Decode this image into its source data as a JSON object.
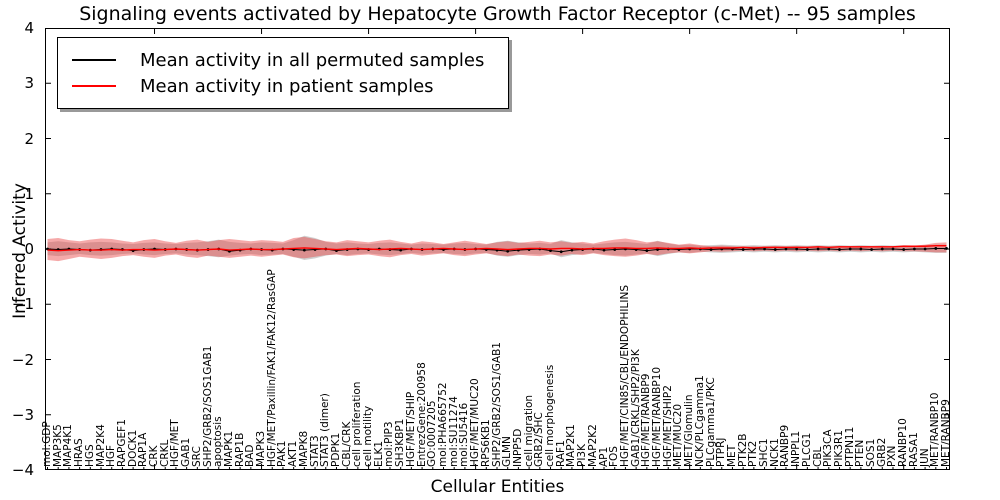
{
  "figure": {
    "title": "Signaling events activated by Hepatocyte Growth Factor Receptor (c-Met) -- 95 samples",
    "xlabel": "Cellular Entities",
    "ylabel": "Inferred Activity",
    "background": "#ffffff"
  },
  "legend": {
    "position": "upper left",
    "items": [
      {
        "label": "Mean activity in all permuted samples",
        "color": "#000000"
      },
      {
        "label": "Mean activity in patient samples",
        "color": "#ff0000"
      }
    ]
  },
  "axes": {
    "ylim": [
      -4,
      4
    ],
    "ytick_values": [
      4,
      3,
      2,
      1,
      0,
      -1,
      -2,
      -3,
      -4
    ],
    "ytick_labels": [
      "4",
      "3",
      "2",
      "1",
      "0",
      "−1",
      "−2",
      "−3",
      "−4"
    ],
    "xtick_major_every": 10,
    "grid": false
  },
  "chart_data": {
    "type": "line",
    "title": "Signaling events activated by Hepatocyte Growth Factor Receptor (c-Met) -- 95 samples",
    "xlabel": "Cellular Entities",
    "ylabel": "Inferred Activity",
    "ylim": [
      -4,
      4
    ],
    "legend_position": "upper left",
    "categories": [
      "mol:GDP",
      "MAP3K5",
      "MAP4K1",
      "HRAS",
      "HGS",
      "MAP2K4",
      "HGF",
      "RAPGEF1",
      "DOCK1",
      "RAP1A",
      "CRK",
      "CRKL",
      "HGF/MET",
      "GAB1",
      "SRC",
      "SHP2/GRB2/SOS1GAB1",
      "apoptosis",
      "MAPK1",
      "RAP1B",
      "BAD",
      "MAPK3",
      "HGF/MET/Paxillin/FAK1/FAK12/RasGAP",
      "PAK1",
      "AKT1",
      "MAPK8",
      "STAT3",
      "STAT3 (dimer)",
      "PDPK1",
      "CBL/CRK",
      "cell proliferation",
      "cell motility",
      "ELK1",
      "mol:PIP3",
      "SH3KBP1",
      "HGF/MET/SHIP",
      "EntrezGene:200958",
      "GO:0007205",
      "mol:PHA665752",
      "mol:SU11274",
      "mol:SU5416",
      "HGF/MET/MUC20",
      "RPS6KB1",
      "SHP2/GRB2/SOS1/GAB1",
      "GLMN",
      "INPP5D",
      "cell migration",
      "GRB2/SHC",
      "cell morphogenesis",
      "RAF1",
      "MAP2K1",
      "PI3K",
      "MAP2K2",
      "AP1",
      "FOS",
      "HGF/MET/CIN85/CBL/ENDOPHILINS",
      "GAB1/CRKL/SHP2/PI3K",
      "HGF/MET/RANBP9",
      "HGF/MET/RANBP10",
      "HGF/MET/SHIP2",
      "MET/MUC20",
      "MET/Glomulin",
      "NCK/PLCgamma1",
      "PLCgamma1/PKC",
      "PTPRJ",
      "MET",
      "PTK2B",
      "PTK2",
      "SHC1",
      "NCK1",
      "RANBP9",
      "INPPL1",
      "PLCG1",
      "CBL",
      "PIK3CA",
      "PIK3R1",
      "PTPN11",
      "PTEN",
      "SOS1",
      "GRB2",
      "PXN",
      "RANBP10",
      "RASA1",
      "JUN",
      "MET/RANBP10",
      "MET/RANBP9"
    ],
    "series": [
      {
        "name": "Mean activity in all permuted samples",
        "color": "#000000",
        "style": "line+dots",
        "values": [
          0,
          -0.01,
          0,
          -0.01,
          -0.02,
          -0.01,
          0,
          -0.01,
          -0.03,
          -0.01,
          0,
          -0.01,
          0,
          -0.01,
          -0.02,
          -0.01,
          0,
          -0.04,
          -0.02,
          0,
          -0.01,
          -0.02,
          0,
          -0.01,
          -0.02,
          -0.01,
          0,
          -0.03,
          -0.01,
          0,
          -0.01,
          0,
          -0.01,
          -0.02,
          0,
          -0.01,
          0,
          -0.01,
          0,
          -0.01,
          0,
          -0.01,
          -0.02,
          -0.04,
          -0.02,
          -0.01,
          0,
          -0.03,
          -0.05,
          -0.02,
          -0.01,
          0,
          -0.02,
          -0.01,
          0,
          -0.01,
          -0.03,
          -0.01,
          0,
          -0.01,
          0,
          0,
          -0.01,
          0,
          0,
          -0.01,
          0,
          0,
          -0.01,
          0,
          0,
          -0.01,
          0,
          0,
          -0.01,
          0,
          0,
          -0.01,
          0,
          0,
          -0.01,
          0,
          0,
          0.01,
          0.01
        ]
      },
      {
        "name": "Mean activity in patient samples",
        "color": "#ff0000",
        "style": "line",
        "values": [
          -0.02,
          -0.03,
          -0.02,
          -0.01,
          -0.02,
          -0.02,
          -0.01,
          -0.02,
          -0.01,
          -0.01,
          -0.02,
          -0.01,
          0,
          -0.01,
          -0.02,
          -0.01,
          0,
          -0.02,
          -0.01,
          0,
          -0.01,
          -0.01,
          0,
          0.01,
          0.02,
          0.01,
          0,
          -0.01,
          0,
          0.01,
          0,
          -0.01,
          0,
          0.01,
          0,
          -0.01,
          0,
          0.01,
          0,
          -0.01,
          0,
          0.01,
          0,
          -0.01,
          0,
          0.01,
          0.01,
          0,
          0.01,
          0.01,
          0,
          0.01,
          0.01,
          0.02,
          0.02,
          0.01,
          0.01,
          0.02,
          0.01,
          0.01,
          0.02,
          0.01,
          0.02,
          0.02,
          0.02,
          0.03,
          0.02,
          0.03,
          0.03,
          0.03,
          0.03,
          0.03,
          0.04,
          0.03,
          0.04,
          0.04,
          0.04,
          0.04,
          0.04,
          0.04,
          0.05,
          0.05,
          0.05,
          0.06,
          0.06
        ]
      }
    ],
    "bands": [
      {
        "name": "permuted-samples-range",
        "color": "#888888",
        "opacity": 0.4,
        "upper": [
          0.12,
          0.14,
          0.12,
          0.1,
          0.12,
          0.13,
          0.12,
          0.1,
          0.09,
          0.11,
          0.12,
          0.1,
          0.09,
          0.11,
          0.12,
          0.14,
          0.17,
          0.13,
          0.11,
          0.1,
          0.12,
          0.11,
          0.1,
          0.16,
          0.24,
          0.2,
          0.13,
          0.1,
          0.12,
          0.1,
          0.09,
          0.11,
          0.12,
          0.1,
          0.08,
          0.1,
          0.09,
          0.08,
          0.1,
          0.11,
          0.09,
          0.08,
          0.13,
          0.15,
          0.12,
          0.1,
          0.11,
          0.09,
          0.16,
          0.12,
          0.1,
          0.08,
          0.1,
          0.12,
          0.13,
          0.11,
          0.09,
          0.15,
          0.1,
          0.07,
          0.08,
          0.06,
          0.07,
          0.08,
          0.07,
          0.06,
          0.07,
          0.06,
          0.07,
          0.06,
          0.07,
          0.06,
          0.07,
          0.06,
          0.07,
          0.06,
          0.07,
          0.06,
          0.07,
          0.06,
          0.07,
          0.06,
          0.07,
          0.08,
          0.08
        ],
        "lower": [
          -0.11,
          -0.13,
          -0.11,
          -0.09,
          -0.11,
          -0.12,
          -0.11,
          -0.09,
          -0.08,
          -0.1,
          -0.11,
          -0.09,
          -0.08,
          -0.1,
          -0.11,
          -0.13,
          -0.15,
          -0.12,
          -0.1,
          -0.09,
          -0.11,
          -0.1,
          -0.09,
          -0.14,
          -0.2,
          -0.17,
          -0.12,
          -0.09,
          -0.11,
          -0.09,
          -0.08,
          -0.1,
          -0.11,
          -0.09,
          -0.07,
          -0.09,
          -0.08,
          -0.07,
          -0.09,
          -0.1,
          -0.08,
          -0.07,
          -0.12,
          -0.14,
          -0.11,
          -0.09,
          -0.1,
          -0.08,
          -0.15,
          -0.11,
          -0.09,
          -0.07,
          -0.09,
          -0.11,
          -0.12,
          -0.1,
          -0.08,
          -0.13,
          -0.09,
          -0.06,
          -0.07,
          -0.05,
          -0.06,
          -0.07,
          -0.06,
          -0.05,
          -0.06,
          -0.05,
          -0.06,
          -0.05,
          -0.06,
          -0.05,
          -0.06,
          -0.05,
          -0.06,
          -0.05,
          -0.06,
          -0.05,
          -0.06,
          -0.05,
          -0.06,
          -0.05,
          -0.06,
          -0.07,
          -0.07
        ]
      },
      {
        "name": "patient-samples-range",
        "color": "#e84040",
        "opacity": 0.45,
        "upper": [
          0.18,
          0.2,
          0.16,
          0.14,
          0.17,
          0.19,
          0.18,
          0.15,
          0.12,
          0.16,
          0.18,
          0.14,
          0.11,
          0.15,
          0.17,
          0.13,
          0.16,
          0.18,
          0.16,
          0.14,
          0.16,
          0.15,
          0.13,
          0.2,
          0.22,
          0.18,
          0.14,
          0.12,
          0.16,
          0.14,
          0.12,
          0.15,
          0.17,
          0.13,
          0.1,
          0.14,
          0.12,
          0.09,
          0.12,
          0.15,
          0.12,
          0.09,
          0.12,
          0.14,
          0.11,
          0.13,
          0.15,
          0.12,
          0.14,
          0.11,
          0.13,
          0.1,
          0.14,
          0.17,
          0.19,
          0.16,
          0.12,
          0.14,
          0.11,
          0.08,
          0.1,
          0.07,
          0.05,
          0.06,
          0.05,
          0.04,
          0.05,
          0.04,
          0.05,
          0.04,
          0.05,
          0.04,
          0.05,
          0.04,
          0.05,
          0.04,
          0.05,
          0.04,
          0.05,
          0.04,
          0.05,
          0.06,
          0.08,
          0.11,
          0.12
        ],
        "lower": [
          -0.2,
          -0.22,
          -0.18,
          -0.14,
          -0.16,
          -0.18,
          -0.16,
          -0.13,
          -0.11,
          -0.14,
          -0.16,
          -0.12,
          -0.1,
          -0.14,
          -0.16,
          -0.12,
          -0.14,
          -0.16,
          -0.14,
          -0.12,
          -0.14,
          -0.12,
          -0.1,
          -0.15,
          -0.17,
          -0.14,
          -0.11,
          -0.1,
          -0.13,
          -0.11,
          -0.1,
          -0.13,
          -0.15,
          -0.11,
          -0.09,
          -0.12,
          -0.1,
          -0.08,
          -0.11,
          -0.13,
          -0.1,
          -0.08,
          -0.11,
          -0.13,
          -0.1,
          -0.12,
          -0.13,
          -0.1,
          -0.12,
          -0.09,
          -0.11,
          -0.08,
          -0.11,
          -0.13,
          -0.14,
          -0.12,
          -0.09,
          -0.11,
          -0.08,
          -0.06,
          -0.08,
          -0.06,
          -0.04,
          -0.05,
          -0.04,
          -0.03,
          -0.04,
          -0.03,
          -0.04,
          -0.03,
          -0.04,
          -0.03,
          -0.04,
          -0.03,
          -0.04,
          -0.03,
          -0.04,
          -0.03,
          -0.04,
          -0.03,
          -0.04,
          -0.04,
          -0.05,
          -0.06,
          -0.06
        ]
      }
    ]
  }
}
